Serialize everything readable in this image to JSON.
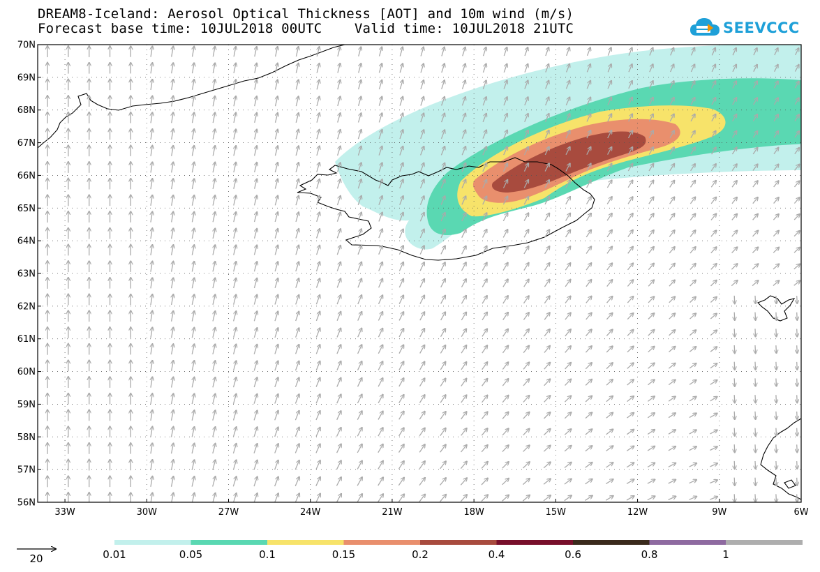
{
  "title": {
    "line1": "DREAM8-Iceland: Aerosol Optical Thickness [AOT] and 10m wind (m/s)",
    "line2": "Forecast base time: 10JUL2018 00UTC    Valid time: 10JUL2018 21UTC"
  },
  "logo": {
    "text": "SEEVCCC",
    "icon": "cloud-icon",
    "color": "#1ea0d8"
  },
  "map": {
    "lon_range": [
      -34,
      -6
    ],
    "lat_range": [
      56,
      70
    ],
    "lat_ticks": [
      "70N",
      "69N",
      "68N",
      "67N",
      "66N",
      "65N",
      "64N",
      "63N",
      "62N",
      "61N",
      "60N",
      "59N",
      "58N",
      "57N",
      "56N"
    ],
    "lon_ticks": [
      "33W",
      "30W",
      "27W",
      "24W",
      "21W",
      "18W",
      "15W",
      "12W",
      "9W",
      "6W"
    ],
    "gridlines": "dotted"
  },
  "wind_reference": {
    "label": "20",
    "unit": "m/s"
  },
  "legend": {
    "colors": [
      "#c2f0ec",
      "#5ad8b2",
      "#f7e36a",
      "#e98f6d",
      "#a84b3e",
      "#780f2b",
      "#3a2a1c",
      "#8e6aa0",
      "#aeaeae"
    ],
    "labels": [
      "0.01",
      "0.05",
      "0.1",
      "0.15",
      "0.2",
      "0.4",
      "0.6",
      "0.8",
      "1"
    ]
  },
  "field": {
    "name": "AOT",
    "levels": [
      0.01,
      0.05,
      0.1,
      0.15,
      0.2
    ]
  }
}
